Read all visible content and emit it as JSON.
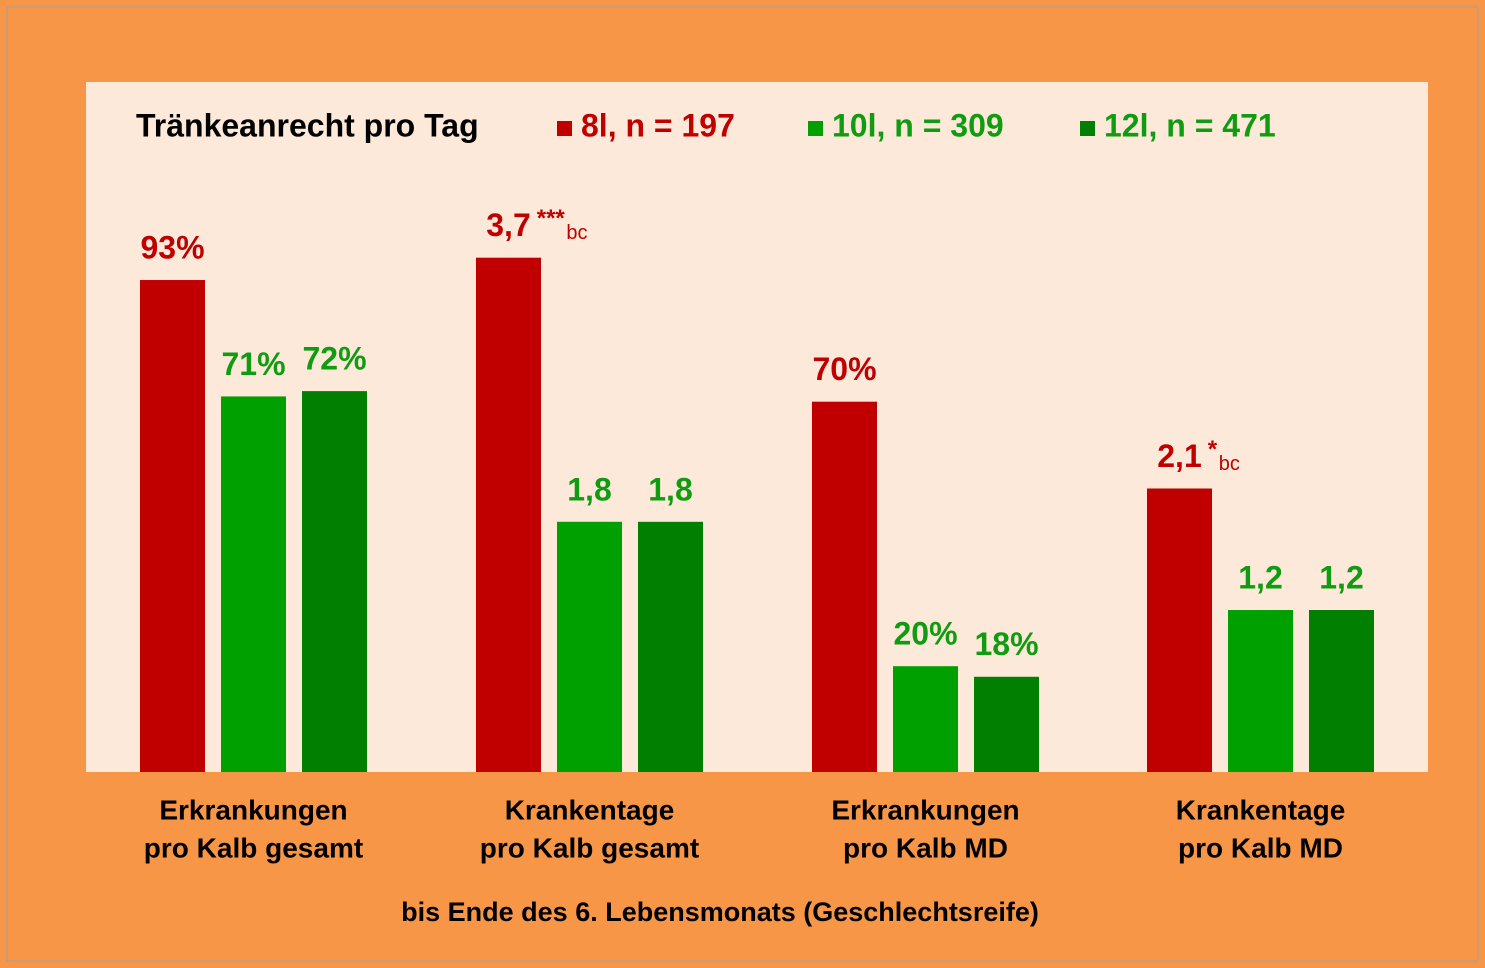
{
  "chart_data": {
    "type": "bar",
    "legend_title": "Tränkeanrecht pro Tag",
    "categories": [
      [
        "Erkrankungen",
        "pro Kalb gesamt"
      ],
      [
        "Krankentage",
        "pro Kalb gesamt"
      ],
      [
        "Erkrankungen",
        "pro Kalb MD"
      ],
      [
        "Krankentage",
        "pro Kalb MD"
      ]
    ],
    "xlabel": "bis Ende des 6. Lebensmonats  (Geschlechtsreife)",
    "series": [
      {
        "name": "8l, n = 197",
        "color": "#c00000",
        "label_color": "#c00000",
        "values": [
          93,
          3.7,
          70,
          2.1
        ],
        "value_labels": [
          "93%",
          "3,7",
          "70%",
          "2,1"
        ],
        "annotations": [
          null,
          "***",
          null,
          "*"
        ],
        "annotation_subs": [
          null,
          "bc",
          null,
          "bc"
        ]
      },
      {
        "name": "10l, n = 309",
        "color": "#00a000",
        "label_color": "#109c10",
        "values": [
          71,
          1.8,
          20,
          1.2
        ],
        "value_labels": [
          "71%",
          "1,8",
          "20%",
          "1,2"
        ]
      },
      {
        "name": "12l, n = 471",
        "color": "#007f00",
        "label_color": "#109c10",
        "values": [
          72,
          1.8,
          18,
          1.2
        ],
        "value_labels": [
          "72%",
          "1,8",
          "18%",
          "1,2"
        ]
      }
    ]
  }
}
